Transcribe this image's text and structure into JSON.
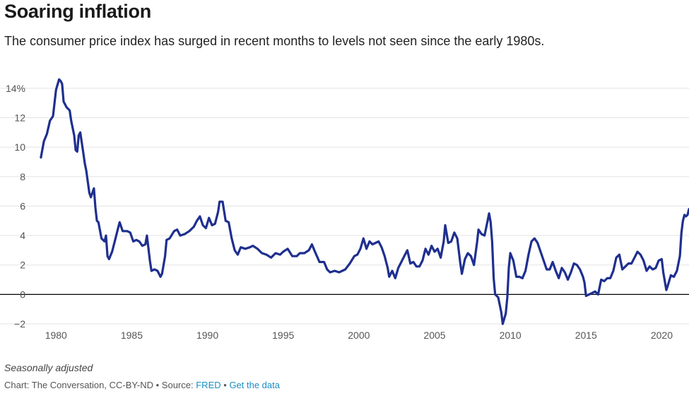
{
  "title": "Soaring inflation",
  "subtitle": "The consumer price index has surged in recent months to levels not seen since the early 1980s.",
  "note": "Seasonally adjusted",
  "footer": {
    "credit": "Chart: The Conversation, CC-BY-ND",
    "separator": "•",
    "source_prefix": "Source:",
    "source_link": "FRED",
    "data_link": "Get the data"
  },
  "colors": {
    "line": "#1f2f8f",
    "grid": "#e3e3e3",
    "zero": "#000000",
    "link": "#1a8fc4"
  },
  "chart_data": {
    "type": "line",
    "title": "Soaring inflation",
    "xlabel": "",
    "ylabel": "",
    "xlim": [
      1978.4,
      2021.8
    ],
    "ylim": [
      -2,
      15
    ],
    "y_ticks": [
      -2,
      0,
      2,
      4,
      6,
      8,
      10,
      12,
      14
    ],
    "y_tick_labels": [
      "−2",
      "0",
      "2",
      "4",
      "6",
      "8",
      "10",
      "12",
      "14%"
    ],
    "x_ticks": [
      1980,
      1985,
      1990,
      1995,
      2000,
      2005,
      2010,
      2015,
      2020
    ],
    "x_tick_labels": [
      "1980",
      "1985",
      "1990",
      "1995",
      "2000",
      "2005",
      "2010",
      "2015",
      "2020"
    ],
    "grid": true,
    "series": [
      {
        "points": [
          [
            1979.0,
            9.3
          ],
          [
            1979.2,
            10.4
          ],
          [
            1979.4,
            10.9
          ],
          [
            1979.6,
            11.8
          ],
          [
            1979.8,
            12.1
          ],
          [
            1980.0,
            13.9
          ],
          [
            1980.2,
            14.6
          ],
          [
            1980.3,
            14.5
          ],
          [
            1980.4,
            14.3
          ],
          [
            1980.5,
            13.1
          ],
          [
            1980.7,
            12.7
          ],
          [
            1980.9,
            12.5
          ],
          [
            1981.0,
            11.8
          ],
          [
            1981.2,
            10.8
          ],
          [
            1981.3,
            9.8
          ],
          [
            1981.4,
            9.7
          ],
          [
            1981.5,
            10.8
          ],
          [
            1981.6,
            11.0
          ],
          [
            1981.8,
            9.6
          ],
          [
            1981.9,
            8.9
          ],
          [
            1982.0,
            8.4
          ],
          [
            1982.2,
            6.9
          ],
          [
            1982.3,
            6.6
          ],
          [
            1982.5,
            7.2
          ],
          [
            1982.6,
            5.9
          ],
          [
            1982.7,
            5.0
          ],
          [
            1982.8,
            4.9
          ],
          [
            1983.0,
            3.8
          ],
          [
            1983.2,
            3.6
          ],
          [
            1983.3,
            4.0
          ],
          [
            1983.4,
            2.6
          ],
          [
            1983.5,
            2.4
          ],
          [
            1983.7,
            2.9
          ],
          [
            1983.9,
            3.7
          ],
          [
            1984.1,
            4.5
          ],
          [
            1984.2,
            4.9
          ],
          [
            1984.4,
            4.3
          ],
          [
            1984.7,
            4.3
          ],
          [
            1984.9,
            4.2
          ],
          [
            1985.1,
            3.6
          ],
          [
            1985.3,
            3.7
          ],
          [
            1985.5,
            3.6
          ],
          [
            1985.7,
            3.3
          ],
          [
            1985.9,
            3.4
          ],
          [
            1986.0,
            4.0
          ],
          [
            1986.2,
            2.3
          ],
          [
            1986.3,
            1.6
          ],
          [
            1986.5,
            1.7
          ],
          [
            1986.7,
            1.6
          ],
          [
            1986.9,
            1.2
          ],
          [
            1987.0,
            1.4
          ],
          [
            1987.2,
            2.6
          ],
          [
            1987.3,
            3.7
          ],
          [
            1987.5,
            3.8
          ],
          [
            1987.8,
            4.3
          ],
          [
            1988.0,
            4.4
          ],
          [
            1988.2,
            4.0
          ],
          [
            1988.5,
            4.1
          ],
          [
            1988.8,
            4.3
          ],
          [
            1989.1,
            4.6
          ],
          [
            1989.3,
            5.0
          ],
          [
            1989.5,
            5.3
          ],
          [
            1989.7,
            4.7
          ],
          [
            1989.9,
            4.5
          ],
          [
            1990.1,
            5.2
          ],
          [
            1990.3,
            4.7
          ],
          [
            1990.5,
            4.8
          ],
          [
            1990.7,
            5.6
          ],
          [
            1990.8,
            6.3
          ],
          [
            1991.0,
            6.3
          ],
          [
            1991.2,
            5.0
          ],
          [
            1991.4,
            4.9
          ],
          [
            1991.6,
            3.8
          ],
          [
            1991.8,
            3.0
          ],
          [
            1992.0,
            2.7
          ],
          [
            1992.2,
            3.2
          ],
          [
            1992.5,
            3.1
          ],
          [
            1992.8,
            3.2
          ],
          [
            1993.0,
            3.3
          ],
          [
            1993.3,
            3.1
          ],
          [
            1993.6,
            2.8
          ],
          [
            1993.9,
            2.7
          ],
          [
            1994.2,
            2.5
          ],
          [
            1994.5,
            2.8
          ],
          [
            1994.8,
            2.7
          ],
          [
            1995.0,
            2.9
          ],
          [
            1995.3,
            3.1
          ],
          [
            1995.6,
            2.6
          ],
          [
            1995.9,
            2.6
          ],
          [
            1996.1,
            2.8
          ],
          [
            1996.4,
            2.8
          ],
          [
            1996.7,
            3.0
          ],
          [
            1996.9,
            3.4
          ],
          [
            1997.1,
            2.9
          ],
          [
            1997.4,
            2.2
          ],
          [
            1997.7,
            2.2
          ],
          [
            1997.9,
            1.7
          ],
          [
            1998.1,
            1.5
          ],
          [
            1998.4,
            1.6
          ],
          [
            1998.7,
            1.5
          ],
          [
            1998.9,
            1.6
          ],
          [
            1999.1,
            1.7
          ],
          [
            1999.4,
            2.1
          ],
          [
            1999.7,
            2.6
          ],
          [
            1999.9,
            2.7
          ],
          [
            2000.1,
            3.1
          ],
          [
            2000.3,
            3.8
          ],
          [
            2000.5,
            3.1
          ],
          [
            2000.7,
            3.6
          ],
          [
            2000.9,
            3.4
          ],
          [
            2001.1,
            3.5
          ],
          [
            2001.3,
            3.6
          ],
          [
            2001.5,
            3.2
          ],
          [
            2001.7,
            2.6
          ],
          [
            2001.9,
            1.8
          ],
          [
            2002.0,
            1.2
          ],
          [
            2002.2,
            1.6
          ],
          [
            2002.4,
            1.1
          ],
          [
            2002.6,
            1.8
          ],
          [
            2002.8,
            2.2
          ],
          [
            2003.0,
            2.6
          ],
          [
            2003.2,
            3.0
          ],
          [
            2003.4,
            2.1
          ],
          [
            2003.6,
            2.2
          ],
          [
            2003.8,
            1.9
          ],
          [
            2004.0,
            1.9
          ],
          [
            2004.2,
            2.3
          ],
          [
            2004.4,
            3.1
          ],
          [
            2004.6,
            2.7
          ],
          [
            2004.8,
            3.3
          ],
          [
            2005.0,
            2.9
          ],
          [
            2005.2,
            3.1
          ],
          [
            2005.4,
            2.5
          ],
          [
            2005.6,
            3.6
          ],
          [
            2005.7,
            4.7
          ],
          [
            2005.9,
            3.5
          ],
          [
            2006.1,
            3.6
          ],
          [
            2006.3,
            4.2
          ],
          [
            2006.5,
            3.8
          ],
          [
            2006.7,
            2.1
          ],
          [
            2006.8,
            1.4
          ],
          [
            2007.0,
            2.4
          ],
          [
            2007.2,
            2.8
          ],
          [
            2007.4,
            2.6
          ],
          [
            2007.6,
            2.0
          ],
          [
            2007.8,
            3.5
          ],
          [
            2007.9,
            4.4
          ],
          [
            2008.1,
            4.1
          ],
          [
            2008.3,
            4.0
          ],
          [
            2008.5,
            5.0
          ],
          [
            2008.6,
            5.5
          ],
          [
            2008.7,
            4.9
          ],
          [
            2008.8,
            3.6
          ],
          [
            2008.9,
            1.1
          ],
          [
            2009.0,
            0.0
          ],
          [
            2009.2,
            -0.2
          ],
          [
            2009.4,
            -1.2
          ],
          [
            2009.5,
            -2.0
          ],
          [
            2009.7,
            -1.3
          ],
          [
            2009.8,
            -0.2
          ],
          [
            2009.9,
            1.8
          ],
          [
            2010.0,
            2.8
          ],
          [
            2010.2,
            2.3
          ],
          [
            2010.4,
            1.2
          ],
          [
            2010.6,
            1.2
          ],
          [
            2010.8,
            1.1
          ],
          [
            2011.0,
            1.6
          ],
          [
            2011.2,
            2.7
          ],
          [
            2011.4,
            3.6
          ],
          [
            2011.6,
            3.8
          ],
          [
            2011.8,
            3.5
          ],
          [
            2012.0,
            2.9
          ],
          [
            2012.2,
            2.3
          ],
          [
            2012.4,
            1.7
          ],
          [
            2012.6,
            1.7
          ],
          [
            2012.8,
            2.2
          ],
          [
            2013.0,
            1.6
          ],
          [
            2013.2,
            1.1
          ],
          [
            2013.4,
            1.8
          ],
          [
            2013.6,
            1.5
          ],
          [
            2013.8,
            1.0
          ],
          [
            2014.0,
            1.5
          ],
          [
            2014.2,
            2.1
          ],
          [
            2014.4,
            2.0
          ],
          [
            2014.6,
            1.7
          ],
          [
            2014.8,
            1.2
          ],
          [
            2014.9,
            0.8
          ],
          [
            2015.0,
            -0.1
          ],
          [
            2015.2,
            0.0
          ],
          [
            2015.4,
            0.1
          ],
          [
            2015.6,
            0.2
          ],
          [
            2015.8,
            0.0
          ],
          [
            2016.0,
            1.0
          ],
          [
            2016.2,
            0.9
          ],
          [
            2016.4,
            1.1
          ],
          [
            2016.6,
            1.1
          ],
          [
            2016.8,
            1.6
          ],
          [
            2017.0,
            2.5
          ],
          [
            2017.2,
            2.7
          ],
          [
            2017.4,
            1.7
          ],
          [
            2017.6,
            1.9
          ],
          [
            2017.8,
            2.1
          ],
          [
            2018.0,
            2.1
          ],
          [
            2018.2,
            2.5
          ],
          [
            2018.4,
            2.9
          ],
          [
            2018.6,
            2.7
          ],
          [
            2018.8,
            2.3
          ],
          [
            2019.0,
            1.6
          ],
          [
            2019.2,
            1.9
          ],
          [
            2019.4,
            1.7
          ],
          [
            2019.6,
            1.8
          ],
          [
            2019.8,
            2.3
          ],
          [
            2020.0,
            2.4
          ],
          [
            2020.1,
            1.5
          ],
          [
            2020.3,
            0.3
          ],
          [
            2020.4,
            0.6
          ],
          [
            2020.6,
            1.3
          ],
          [
            2020.8,
            1.2
          ],
          [
            2021.0,
            1.6
          ],
          [
            2021.2,
            2.6
          ],
          [
            2021.3,
            4.2
          ],
          [
            2021.4,
            5.0
          ],
          [
            2021.5,
            5.4
          ],
          [
            2021.6,
            5.3
          ],
          [
            2021.7,
            5.4
          ],
          [
            2021.8,
            5.8
          ]
        ]
      }
    ]
  }
}
